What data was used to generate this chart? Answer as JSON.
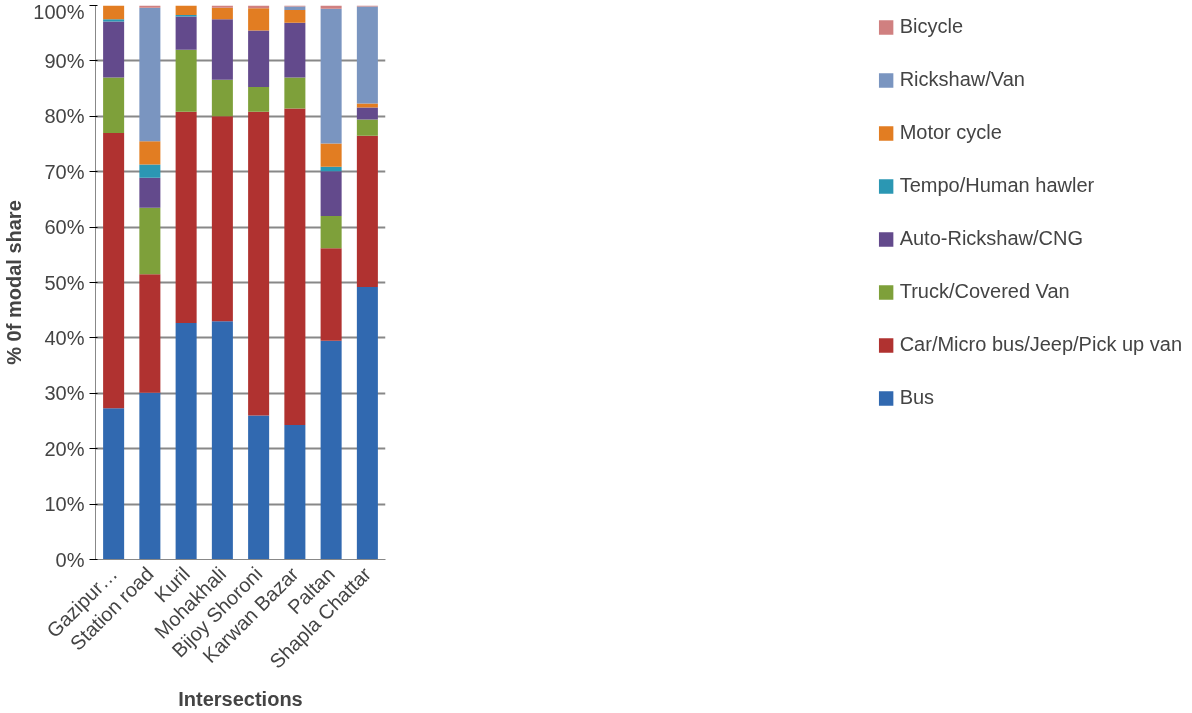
{
  "chart_data": {
    "type": "bar",
    "stacked": true,
    "xlabel": "Intersections",
    "ylabel": "% 0f modal share",
    "categories": [
      "Gazipur…",
      "Station road",
      "Kuril",
      "Mohakhali",
      "Bijoy Shoroni",
      "Karwan Bazar",
      "Paltan",
      "Shapla Chattar"
    ],
    "series": [
      {
        "name": "Bus",
        "color": "#3169b0",
        "values": [
          27.3,
          30.1,
          42.7,
          43.0,
          26.0,
          24.3,
          39.5,
          49.2
        ]
      },
      {
        "name": "Car/Micro bus/Jeep/Pick up van",
        "color": "#b03230",
        "values": [
          49.7,
          21.4,
          38.1,
          37.0,
          54.8,
          57.1,
          16.7,
          27.3
        ]
      },
      {
        "name": "Truck/Covered Van",
        "color": "#7ea03a",
        "values": [
          10.0,
          12.0,
          11.2,
          6.6,
          4.5,
          5.6,
          5.8,
          2.9
        ]
      },
      {
        "name": "Auto-Rickshaw/CNG",
        "color": "#634a8c",
        "values": [
          10.1,
          5.4,
          6.0,
          10.9,
          10.2,
          9.9,
          8.1,
          2.2
        ]
      },
      {
        "name": "Tempo/Human hawler",
        "color": "#2b97b3",
        "values": [
          0.4,
          2.4,
          0.3,
          0,
          0,
          0,
          0.8,
          0
        ]
      },
      {
        "name": "Motor cycle",
        "color": "#e27d22",
        "values": [
          2.5,
          4.2,
          1.7,
          2.1,
          4.0,
          2.3,
          4.2,
          0.7
        ]
      },
      {
        "name": "Rickshaw/Van",
        "color": "#7a95c0",
        "values": [
          0,
          24.1,
          0,
          0,
          0,
          0.6,
          24.3,
          17.5
        ]
      },
      {
        "name": "Bicycle",
        "color": "#d08080",
        "values": [
          0,
          0.4,
          0,
          0.4,
          0.5,
          0.2,
          0.6,
          0.2
        ]
      }
    ],
    "ylim": [
      0,
      100
    ],
    "yticks": [
      {
        "value": 0,
        "label": "0%"
      },
      {
        "value": 10,
        "label": "10%"
      },
      {
        "value": 20,
        "label": "20%"
      },
      {
        "value": 30,
        "label": "30%"
      },
      {
        "value": 40,
        "label": "40%"
      },
      {
        "value": 50,
        "label": "50%"
      },
      {
        "value": 60,
        "label": "60%"
      },
      {
        "value": 70,
        "label": "70%"
      },
      {
        "value": 80,
        "label": "80%"
      },
      {
        "value": 90,
        "label": "90%"
      },
      {
        "value": 100,
        "label": "100%"
      }
    ],
    "grid": "y",
    "legend": "right"
  }
}
